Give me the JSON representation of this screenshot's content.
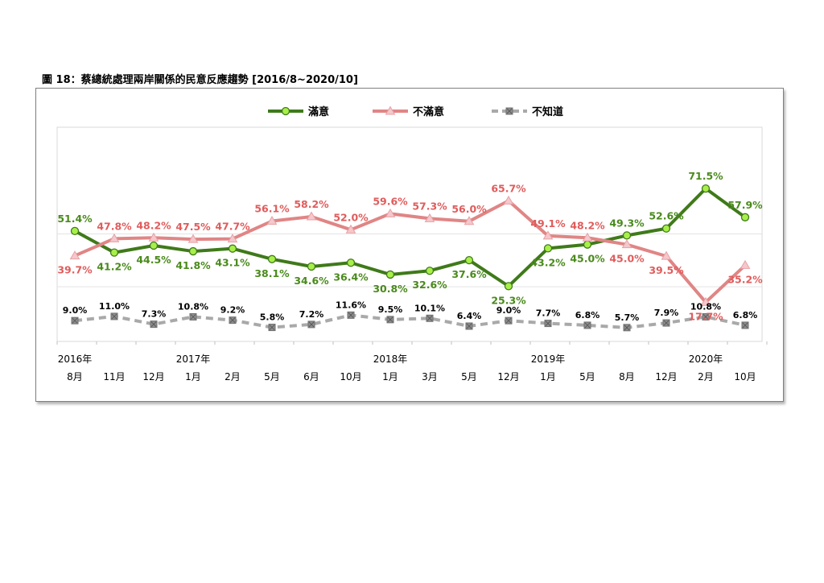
{
  "figure_title": "圖 18：蔡總統處理兩岸關係的民意反應趨勢 [2016/8~2020/10]",
  "chart_data": {
    "type": "line",
    "title": "圖 18：蔡總統處理兩岸關係的民意反應趨勢 [2016/8~2020/10]",
    "categories": [
      "8月",
      "11月",
      "12月",
      "1月",
      "2月",
      "5月",
      "6月",
      "10月",
      "1月",
      "3月",
      "5月",
      "12月",
      "1月",
      "5月",
      "8月",
      "12月",
      "2月",
      "10月"
    ],
    "years": [
      {
        "label": "2016年",
        "index": 0
      },
      {
        "label": "2017年",
        "index": 3
      },
      {
        "label": "2018年",
        "index": 8
      },
      {
        "label": "2019年",
        "index": 12
      },
      {
        "label": "2020年",
        "index": 16
      }
    ],
    "series": [
      {
        "name": "滿意",
        "color": "#3f7a1a",
        "marker_fill": "#a8ef4a",
        "marker": "circle",
        "dash": false,
        "values": [
          51.4,
          41.2,
          44.5,
          41.8,
          43.1,
          38.1,
          34.6,
          36.4,
          30.8,
          32.6,
          37.6,
          25.3,
          43.2,
          45.0,
          49.3,
          52.6,
          71.5,
          57.9
        ],
        "labels": [
          "51.4%",
          "41.2%",
          "44.5%",
          "41.8%",
          "43.1%",
          "38.1%",
          "34.6%",
          "36.4%",
          "30.8%",
          "32.6%",
          "37.6%",
          "25.3%",
          "43.2%",
          "45.0%",
          "49.3%",
          "52.6%",
          "71.5%",
          "57.9%"
        ]
      },
      {
        "name": "不滿意",
        "color": "#e08585",
        "marker_fill": "#f4c8cc",
        "marker": "triangle",
        "dash": false,
        "values": [
          39.7,
          47.8,
          48.2,
          47.5,
          47.7,
          56.1,
          58.2,
          52.0,
          59.6,
          57.3,
          56.0,
          65.7,
          49.1,
          48.2,
          45.0,
          39.5,
          17.7,
          35.2
        ],
        "labels": [
          "39.7%",
          "47.8%",
          "48.2%",
          "47.5%",
          "47.7%",
          "56.1%",
          "58.2%",
          "52.0%",
          "59.6%",
          "57.3%",
          "56.0%",
          "65.7%",
          "49.1%",
          "48.2%",
          "45.0%",
          "39.5%",
          "17.7%",
          "35.2%"
        ]
      },
      {
        "name": "不知道",
        "color": "#a9a9a9",
        "marker_fill": "#8e8e8e",
        "marker": "square",
        "dash": true,
        "values": [
          9.0,
          11.0,
          7.3,
          10.8,
          9.2,
          5.8,
          7.2,
          11.6,
          9.5,
          10.1,
          6.4,
          9.0,
          7.7,
          6.8,
          5.7,
          7.9,
          10.8,
          6.8
        ],
        "labels": [
          "9.0%",
          "11.0%",
          "7.3%",
          "10.8%",
          "9.2%",
          "5.8%",
          "7.2%",
          "11.6%",
          "9.5%",
          "10.1%",
          "6.4%",
          "9.0%",
          "7.7%",
          "6.8%",
          "5.7%",
          "7.9%",
          "10.8%",
          "6.8%"
        ]
      }
    ],
    "ylim": [
      0,
      80
    ],
    "grid": true,
    "legend": "top-center"
  }
}
